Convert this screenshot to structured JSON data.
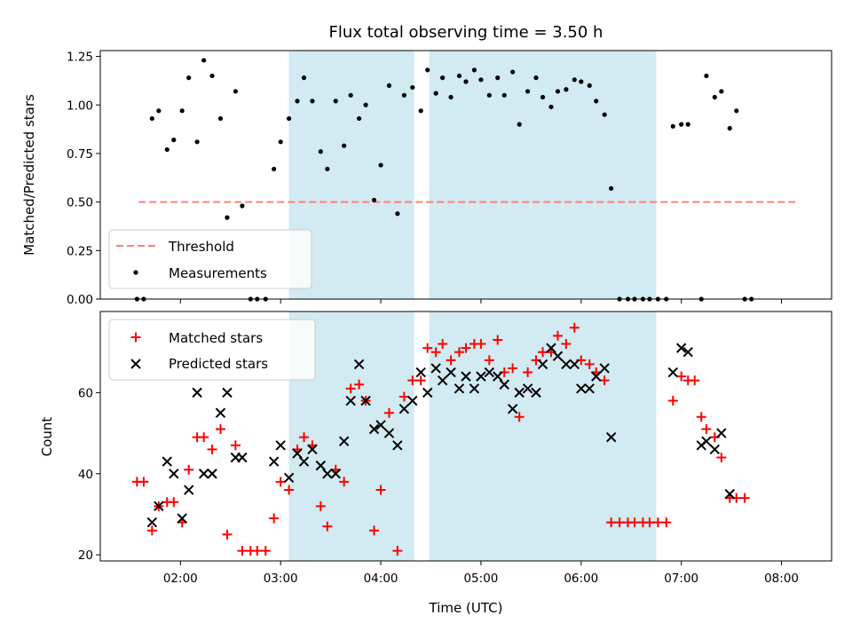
{
  "chart_data": [
    {
      "type": "scatter",
      "title": "Flux total observing time = 3.50 h",
      "xlabel": "",
      "ylabel": "Matched/Predicted stars",
      "ylim": [
        0,
        1.28
      ],
      "yticks": [
        0,
        0.25,
        0.5,
        0.75,
        1.0,
        1.25
      ],
      "ytick_labels": [
        "0.00",
        "0.25",
        "0.50",
        "0.75",
        "1.00",
        "1.25"
      ],
      "xlim": [
        "01:12",
        "08:30"
      ],
      "shaded_intervals": [
        [
          "03:05",
          "04:20"
        ],
        [
          "04:29",
          "06:45"
        ]
      ],
      "shade_color": "#add8e6",
      "threshold": {
        "name": "Threshold",
        "value": 0.5,
        "x_range": [
          "01:35",
          "08:10"
        ],
        "color": "#ff7f7f"
      },
      "legend": {
        "position": "lower-left",
        "entries": [
          "Threshold",
          "Measurements"
        ]
      },
      "series": [
        {
          "name": "Measurements",
          "color": "#000000",
          "marker": "dot",
          "points": [
            [
              "01:34",
              0.0
            ],
            [
              "01:38",
              0.0
            ],
            [
              "01:43",
              0.93
            ],
            [
              "01:47",
              0.97
            ],
            [
              "01:52",
              0.77
            ],
            [
              "01:56",
              0.82
            ],
            [
              "02:01",
              0.97
            ],
            [
              "02:05",
              1.14
            ],
            [
              "02:10",
              0.81
            ],
            [
              "02:14",
              1.23
            ],
            [
              "02:19",
              1.15
            ],
            [
              "02:24",
              0.93
            ],
            [
              "02:28",
              0.42
            ],
            [
              "02:33",
              1.07
            ],
            [
              "02:37",
              0.48
            ],
            [
              "02:42",
              0.0
            ],
            [
              "02:46",
              0.0
            ],
            [
              "02:51",
              0.0
            ],
            [
              "02:56",
              0.67
            ],
            [
              "03:00",
              0.81
            ],
            [
              "03:05",
              0.93
            ],
            [
              "03:10",
              1.02
            ],
            [
              "03:14",
              1.14
            ],
            [
              "03:19",
              1.02
            ],
            [
              "03:24",
              0.76
            ],
            [
              "03:28",
              0.67
            ],
            [
              "03:33",
              1.02
            ],
            [
              "03:38",
              0.79
            ],
            [
              "03:42",
              1.05
            ],
            [
              "03:47",
              0.93
            ],
            [
              "03:51",
              1.0
            ],
            [
              "03:56",
              0.51
            ],
            [
              "04:00",
              0.69
            ],
            [
              "04:05",
              1.1
            ],
            [
              "04:10",
              0.44
            ],
            [
              "04:14",
              1.05
            ],
            [
              "04:19",
              1.09
            ],
            [
              "04:24",
              0.97
            ],
            [
              "04:28",
              1.18
            ],
            [
              "04:33",
              1.06
            ],
            [
              "04:37",
              1.14
            ],
            [
              "04:42",
              1.04
            ],
            [
              "04:47",
              1.15
            ],
            [
              "04:51",
              1.12
            ],
            [
              "04:56",
              1.18
            ],
            [
              "05:00",
              1.13
            ],
            [
              "05:05",
              1.05
            ],
            [
              "05:10",
              1.14
            ],
            [
              "05:14",
              1.05
            ],
            [
              "05:19",
              1.17
            ],
            [
              "05:23",
              0.9
            ],
            [
              "05:28",
              1.07
            ],
            [
              "05:33",
              1.14
            ],
            [
              "05:37",
              1.04
            ],
            [
              "05:42",
              0.99
            ],
            [
              "05:46",
              1.07
            ],
            [
              "05:51",
              1.08
            ],
            [
              "05:56",
              1.13
            ],
            [
              "06:00",
              1.12
            ],
            [
              "06:05",
              1.1
            ],
            [
              "06:09",
              1.02
            ],
            [
              "06:14",
              0.95
            ],
            [
              "06:18",
              0.57
            ],
            [
              "06:23",
              0.0
            ],
            [
              "06:28",
              0.0
            ],
            [
              "06:32",
              0.0
            ],
            [
              "06:37",
              0.0
            ],
            [
              "06:41",
              0.0
            ],
            [
              "06:46",
              0.0
            ],
            [
              "06:51",
              0.0
            ],
            [
              "06:55",
              0.89
            ],
            [
              "07:00",
              0.9
            ],
            [
              "07:04",
              0.9
            ],
            [
              "07:12",
              0.0
            ],
            [
              "07:15",
              1.15
            ],
            [
              "07:20",
              1.04
            ],
            [
              "07:24",
              1.07
            ],
            [
              "07:29",
              0.88
            ],
            [
              "07:33",
              0.97
            ],
            [
              "07:38",
              0.0
            ],
            [
              "07:42",
              0.0
            ]
          ]
        }
      ]
    },
    {
      "type": "scatter",
      "title": "",
      "xlabel": "Time (UTC)",
      "ylabel": "Count",
      "ylim": [
        18.5,
        80
      ],
      "yticks": [
        20,
        40,
        60
      ],
      "ytick_labels": [
        "20",
        "40",
        "60"
      ],
      "xlim": [
        "01:12",
        "08:30"
      ],
      "xticks": [
        "02:00",
        "03:00",
        "04:00",
        "05:00",
        "06:00",
        "07:00",
        "08:00"
      ],
      "xtick_labels": [
        "02:00",
        "03:00",
        "04:00",
        "05:00",
        "06:00",
        "07:00",
        "08:00"
      ],
      "shaded_intervals": [
        [
          "03:05",
          "04:20"
        ],
        [
          "04:29",
          "06:45"
        ]
      ],
      "shade_color": "#add8e6",
      "legend": {
        "position": "upper-left",
        "entries": [
          "Matched stars",
          "Predicted stars"
        ]
      },
      "series": [
        {
          "name": "Matched stars",
          "color": "#ff0000",
          "marker": "plus",
          "points": [
            [
              "01:34",
              38
            ],
            [
              "01:38",
              38
            ],
            [
              "01:43",
              26
            ],
            [
              "01:47",
              32
            ],
            [
              "01:52",
              33
            ],
            [
              "01:56",
              33
            ],
            [
              "02:01",
              28
            ],
            [
              "02:05",
              41
            ],
            [
              "02:10",
              49
            ],
            [
              "02:14",
              49
            ],
            [
              "02:19",
              46
            ],
            [
              "02:24",
              51
            ],
            [
              "02:28",
              25
            ],
            [
              "02:33",
              47
            ],
            [
              "02:37",
              21
            ],
            [
              "02:42",
              21
            ],
            [
              "02:46",
              21
            ],
            [
              "02:51",
              21
            ],
            [
              "02:56",
              29
            ],
            [
              "03:00",
              38
            ],
            [
              "03:05",
              36
            ],
            [
              "03:10",
              46
            ],
            [
              "03:14",
              49
            ],
            [
              "03:19",
              47
            ],
            [
              "03:24",
              32
            ],
            [
              "03:28",
              27
            ],
            [
              "03:33",
              41
            ],
            [
              "03:38",
              38
            ],
            [
              "03:42",
              61
            ],
            [
              "03:47",
              62
            ],
            [
              "03:51",
              58
            ],
            [
              "03:56",
              26
            ],
            [
              "04:00",
              36
            ],
            [
              "04:05",
              55
            ],
            [
              "04:10",
              21
            ],
            [
              "04:14",
              59
            ],
            [
              "04:19",
              63
            ],
            [
              "04:24",
              63
            ],
            [
              "04:28",
              71
            ],
            [
              "04:33",
              70
            ],
            [
              "04:37",
              72
            ],
            [
              "04:42",
              68
            ],
            [
              "04:47",
              70
            ],
            [
              "04:51",
              71
            ],
            [
              "04:56",
              72
            ],
            [
              "05:00",
              72
            ],
            [
              "05:05",
              68
            ],
            [
              "05:10",
              73
            ],
            [
              "05:14",
              65
            ],
            [
              "05:19",
              66
            ],
            [
              "05:23",
              54
            ],
            [
              "05:28",
              65
            ],
            [
              "05:33",
              68
            ],
            [
              "05:37",
              70
            ],
            [
              "05:42",
              70
            ],
            [
              "05:46",
              74
            ],
            [
              "05:51",
              72
            ],
            [
              "05:56",
              76
            ],
            [
              "06:00",
              68
            ],
            [
              "06:05",
              67
            ],
            [
              "06:09",
              65
            ],
            [
              "06:14",
              63
            ],
            [
              "06:18",
              28
            ],
            [
              "06:23",
              28
            ],
            [
              "06:28",
              28
            ],
            [
              "06:32",
              28
            ],
            [
              "06:37",
              28
            ],
            [
              "06:41",
              28
            ],
            [
              "06:46",
              28
            ],
            [
              "06:51",
              28
            ],
            [
              "06:55",
              58
            ],
            [
              "07:00",
              64
            ],
            [
              "07:04",
              63
            ],
            [
              "07:08",
              63
            ],
            [
              "07:12",
              54
            ],
            [
              "07:15",
              51
            ],
            [
              "07:20",
              49
            ],
            [
              "07:24",
              44
            ],
            [
              "07:29",
              34
            ],
            [
              "07:33",
              34
            ],
            [
              "07:38",
              34
            ]
          ]
        },
        {
          "name": "Predicted stars",
          "color": "#000000",
          "marker": "x",
          "points": [
            [
              "01:43",
              28
            ],
            [
              "01:47",
              32
            ],
            [
              "01:52",
              43
            ],
            [
              "01:56",
              40
            ],
            [
              "02:01",
              29
            ],
            [
              "02:05",
              36
            ],
            [
              "02:10",
              60
            ],
            [
              "02:14",
              40
            ],
            [
              "02:19",
              40
            ],
            [
              "02:24",
              55
            ],
            [
              "02:28",
              60
            ],
            [
              "02:33",
              44
            ],
            [
              "02:37",
              44
            ],
            [
              "02:56",
              43
            ],
            [
              "03:00",
              47
            ],
            [
              "03:05",
              39
            ],
            [
              "03:10",
              45
            ],
            [
              "03:14",
              43
            ],
            [
              "03:19",
              46
            ],
            [
              "03:24",
              42
            ],
            [
              "03:28",
              40
            ],
            [
              "03:33",
              40
            ],
            [
              "03:38",
              48
            ],
            [
              "03:42",
              58
            ],
            [
              "03:47",
              67
            ],
            [
              "03:51",
              58
            ],
            [
              "03:56",
              51
            ],
            [
              "04:00",
              52
            ],
            [
              "04:05",
              50
            ],
            [
              "04:10",
              47
            ],
            [
              "04:14",
              56
            ],
            [
              "04:19",
              58
            ],
            [
              "04:24",
              65
            ],
            [
              "04:28",
              60
            ],
            [
              "04:33",
              66
            ],
            [
              "04:37",
              63
            ],
            [
              "04:42",
              65
            ],
            [
              "04:47",
              61
            ],
            [
              "04:51",
              64
            ],
            [
              "04:56",
              61
            ],
            [
              "05:00",
              64
            ],
            [
              "05:05",
              65
            ],
            [
              "05:10",
              64
            ],
            [
              "05:14",
              62
            ],
            [
              "05:19",
              56
            ],
            [
              "05:23",
              60
            ],
            [
              "05:28",
              61
            ],
            [
              "05:33",
              60
            ],
            [
              "05:37",
              67
            ],
            [
              "05:42",
              71
            ],
            [
              "05:46",
              69
            ],
            [
              "05:51",
              67
            ],
            [
              "05:56",
              67
            ],
            [
              "06:00",
              61
            ],
            [
              "06:05",
              61
            ],
            [
              "06:09",
              64
            ],
            [
              "06:14",
              66
            ],
            [
              "06:18",
              49
            ],
            [
              "06:55",
              65
            ],
            [
              "07:00",
              71
            ],
            [
              "07:04",
              70
            ],
            [
              "07:12",
              47
            ],
            [
              "07:15",
              48
            ],
            [
              "07:20",
              46
            ],
            [
              "07:24",
              50
            ],
            [
              "07:29",
              35
            ]
          ]
        }
      ]
    }
  ]
}
